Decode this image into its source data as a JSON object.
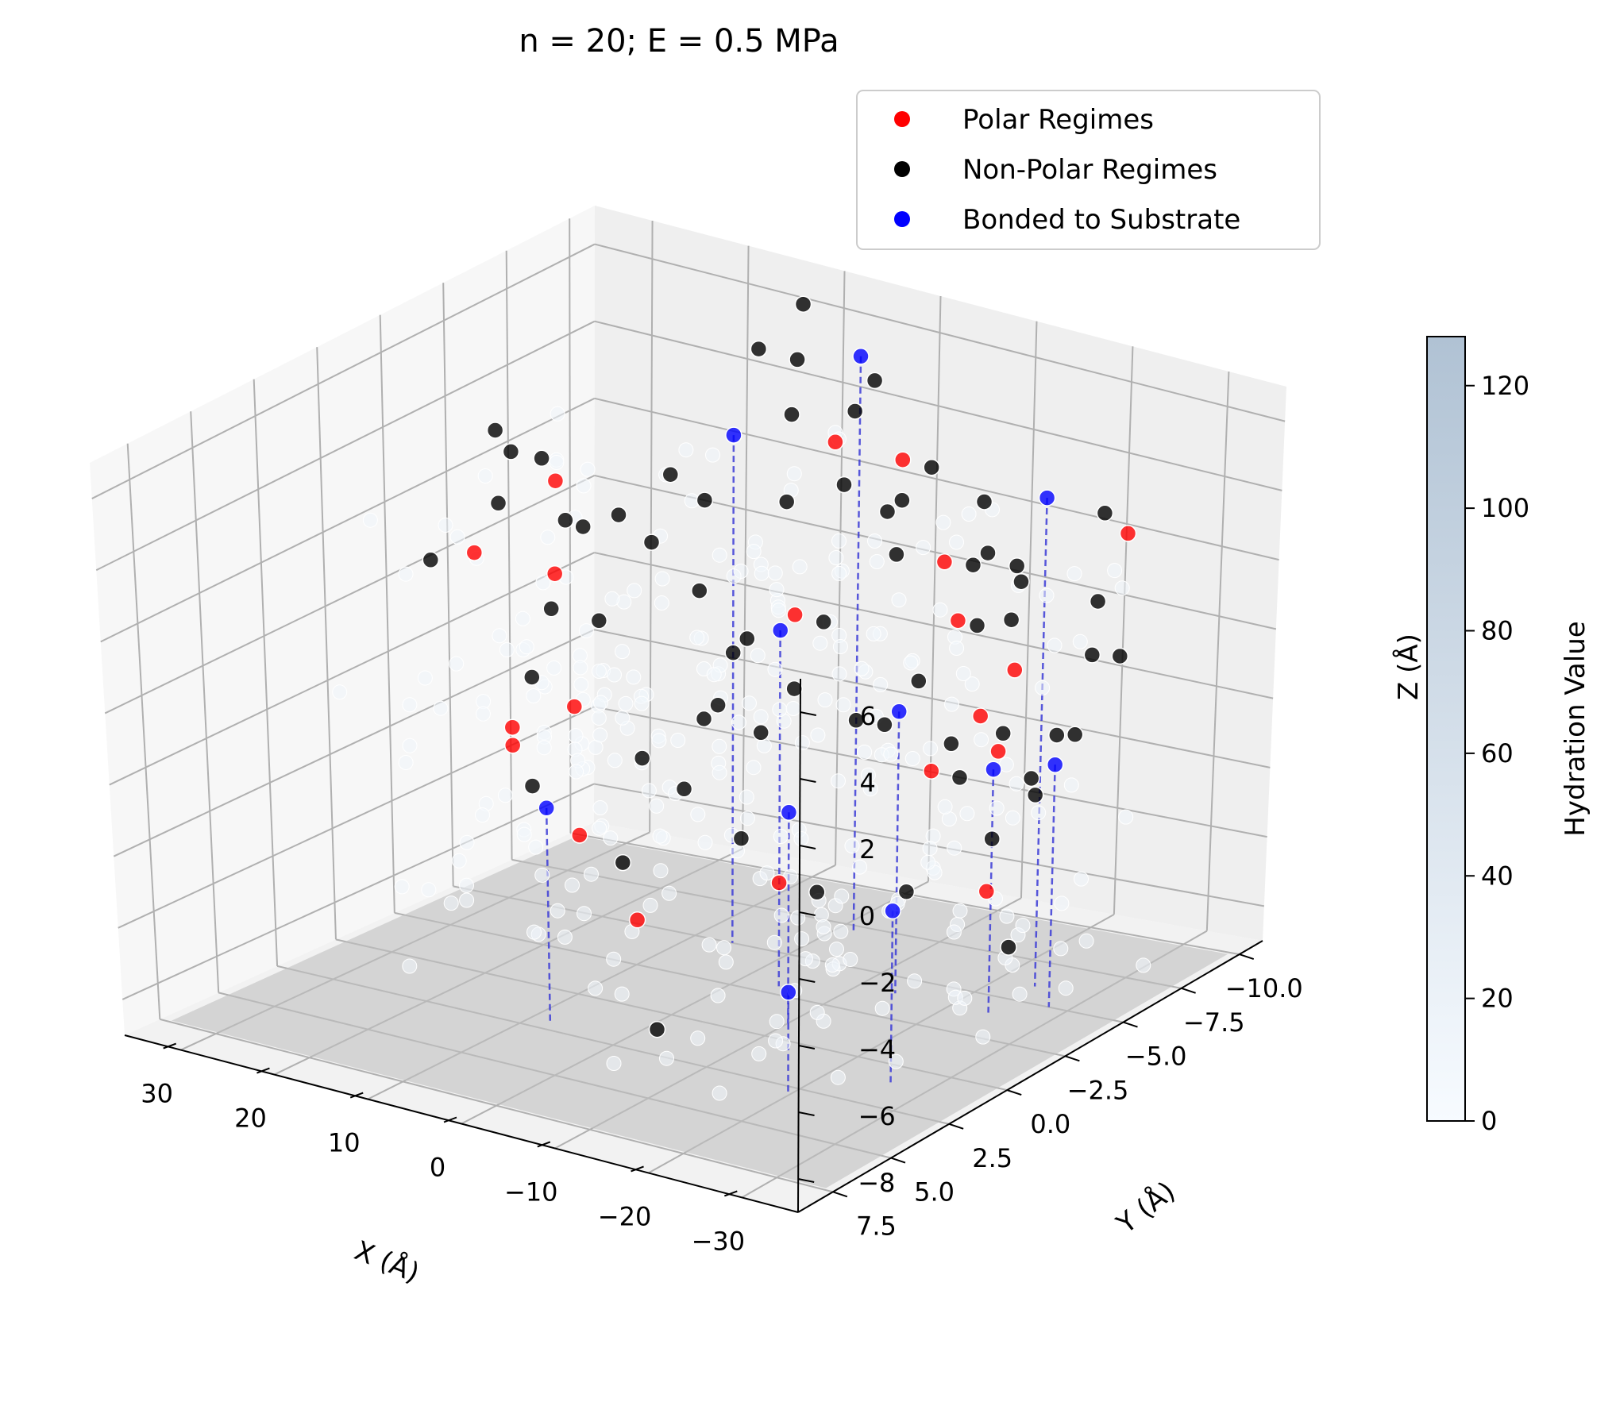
{
  "chart_data": {
    "type": "scatter",
    "title": "n = 20; E = 0.5 MPa",
    "xlabel": "X (Å)",
    "ylabel": "Y (Å)",
    "zlabel": "Z (Å)",
    "xlim": [
      36,
      -36
    ],
    "ylim": [
      9,
      -11
    ],
    "zlim": [
      -9,
      7
    ],
    "x_ticks": [
      {
        "v": 30,
        "label": "30"
      },
      {
        "v": 20,
        "label": "20"
      },
      {
        "v": 10,
        "label": "10"
      },
      {
        "v": 0,
        "label": "0"
      },
      {
        "v": -10,
        "label": "−10"
      },
      {
        "v": -20,
        "label": "−20"
      },
      {
        "v": -30,
        "label": "−30"
      }
    ],
    "y_ticks": [
      {
        "v": 7.5,
        "label": "7.5"
      },
      {
        "v": 5,
        "label": "5.0"
      },
      {
        "v": 2.5,
        "label": "2.5"
      },
      {
        "v": 0,
        "label": "0.0"
      },
      {
        "v": -2.5,
        "label": "−2.5"
      },
      {
        "v": -5,
        "label": "−5.0"
      },
      {
        "v": -7.5,
        "label": "−7.5"
      },
      {
        "v": -10,
        "label": "−10.0"
      }
    ],
    "z_ticks": [
      {
        "v": 6,
        "label": "6"
      },
      {
        "v": 4,
        "label": "4"
      },
      {
        "v": 2,
        "label": "2"
      },
      {
        "v": 0,
        "label": "0"
      },
      {
        "v": -2,
        "label": "−2"
      },
      {
        "v": -4,
        "label": "−4"
      },
      {
        "v": -6,
        "label": "−6"
      },
      {
        "v": -8,
        "label": "−8"
      }
    ],
    "substrate_z": -9,
    "legend": {
      "placement": "top-right",
      "entries": [
        {
          "label": "Polar Regimes",
          "color": "#ff0000"
        },
        {
          "label": "Non-Polar Regimes",
          "color": "#000000"
        },
        {
          "label": "Bonded to Substrate",
          "color": "#0000ff"
        }
      ]
    },
    "colorbar": {
      "label": "Hydration Value",
      "range": [
        0,
        128
      ],
      "ticks": [
        {
          "v": 0,
          "label": "0"
        },
        {
          "v": 20,
          "label": "20"
        },
        {
          "v": 40,
          "label": "40"
        },
        {
          "v": 60,
          "label": "60"
        },
        {
          "v": 80,
          "label": "80"
        },
        {
          "v": 100,
          "label": "100"
        },
        {
          "v": 120,
          "label": "120"
        }
      ],
      "color_low": "#f7fbff",
      "color_high": "#b0c2d4"
    },
    "colors": {
      "polar": "#ff0000",
      "nonpolar": "#000000",
      "bonded": "#0000ff"
    },
    "series": [
      {
        "name": "Polar Regimes",
        "color": "#ff0000",
        "points": [
          [
            28,
            -3,
            1
          ],
          [
            22,
            -4,
            3
          ],
          [
            17,
            -2,
            1.5
          ],
          [
            14,
            1,
            -1.5
          ],
          [
            14,
            1,
            -2
          ],
          [
            -2,
            -6,
            5
          ],
          [
            -9,
            -6,
            5
          ],
          [
            -16,
            -5,
            3
          ],
          [
            -20,
            -4,
            2
          ],
          [
            -25,
            -3,
            0
          ],
          [
            -26,
            -4,
            1
          ],
          [
            -30,
            -7,
            4
          ],
          [
            -15,
            -5,
            -3
          ],
          [
            -14,
            1,
            -4
          ],
          [
            -4,
            3,
            -5
          ],
          [
            10,
            0,
            -1
          ],
          [
            -3,
            -4,
            1
          ],
          [
            2,
            3,
            -3
          ],
          [
            -22,
            -5,
            -2
          ],
          [
            -26,
            -3,
            -5
          ]
        ]
      },
      {
        "name": "Non-Polar Regimes",
        "color": "#000000",
        "points": [
          [
            30,
            -2,
            1
          ],
          [
            28,
            -4,
            2
          ],
          [
            26,
            -5,
            3
          ],
          [
            24,
            -3,
            4
          ],
          [
            23,
            -2,
            5
          ],
          [
            21,
            -4,
            2
          ],
          [
            20,
            -3,
            0
          ],
          [
            18,
            -5,
            2
          ],
          [
            17,
            -1,
            -1
          ],
          [
            15,
            -3,
            0
          ],
          [
            14,
            -2,
            3
          ],
          [
            12,
            -4,
            2
          ],
          [
            12,
            1,
            -3
          ],
          [
            10,
            -4,
            4
          ],
          [
            9,
            -5,
            3
          ],
          [
            7,
            -4,
            1
          ],
          [
            6,
            -6,
            7
          ],
          [
            4,
            -7,
            8
          ],
          [
            2,
            -6,
            7
          ],
          [
            0,
            -5,
            6
          ],
          [
            -4,
            -6,
            6
          ],
          [
            -6,
            -6,
            7
          ],
          [
            -8,
            -4,
            5
          ],
          [
            -10,
            -5,
            4
          ],
          [
            -12,
            -6,
            5
          ],
          [
            -14,
            -4,
            5
          ],
          [
            -16,
            -3,
            4
          ],
          [
            -18,
            -6,
            3
          ],
          [
            -20,
            -5,
            5
          ],
          [
            -22,
            -4,
            2
          ],
          [
            -24,
            -5,
            3
          ],
          [
            -26,
            -4,
            4
          ],
          [
            -28,
            -3,
            3
          ],
          [
            -30,
            -6,
            5
          ],
          [
            -32,
            -5,
            3
          ],
          [
            -34,
            -4,
            2
          ],
          [
            -33,
            -3,
            0
          ],
          [
            -32,
            -6,
            1
          ],
          [
            -30,
            -5,
            -1
          ],
          [
            -28,
            -4,
            -2
          ],
          [
            -26,
            -5,
            -3
          ],
          [
            -24,
            -4,
            -4
          ],
          [
            -22,
            -3,
            -1
          ],
          [
            -20,
            -6,
            -2
          ],
          [
            -18,
            -5,
            -3
          ],
          [
            -16,
            -4,
            0
          ],
          [
            -12,
            -3,
            -1
          ],
          [
            -10,
            -5,
            -2
          ],
          [
            -8,
            -2,
            0
          ],
          [
            -6,
            -4,
            1
          ],
          [
            -2,
            -3,
            -2
          ],
          [
            0,
            -2,
            -1
          ],
          [
            2,
            -4,
            0
          ],
          [
            4,
            -3,
            -2
          ],
          [
            6,
            -5,
            -1
          ],
          [
            8,
            -2,
            -3
          ],
          [
            0,
            2,
            -4
          ],
          [
            -4,
            1,
            -2
          ],
          [
            -10,
            1,
            -3
          ],
          [
            -18,
            1,
            -4
          ],
          [
            -26,
            -4,
            -7
          ],
          [
            -6,
            3,
            -8
          ],
          [
            -20,
            -2,
            -5
          ],
          [
            3,
            -6,
            3
          ],
          [
            -14,
            -7,
            2
          ]
        ]
      },
      {
        "name": "Bonded to Substrate",
        "color": "#0000ff",
        "points": [
          [
            6,
            -5,
            5
          ],
          [
            -2,
            -7,
            7
          ],
          [
            -24,
            -6,
            5
          ],
          [
            -4,
            -3,
            1
          ],
          [
            8,
            2,
            -3
          ],
          [
            -14,
            -4,
            -1
          ],
          [
            -24,
            -4,
            -2
          ],
          [
            -28,
            -5,
            -2
          ],
          [
            -26,
            1,
            -4
          ],
          [
            -20,
            3,
            -6
          ],
          [
            -10,
            -1,
            -3
          ]
        ]
      }
    ]
  }
}
